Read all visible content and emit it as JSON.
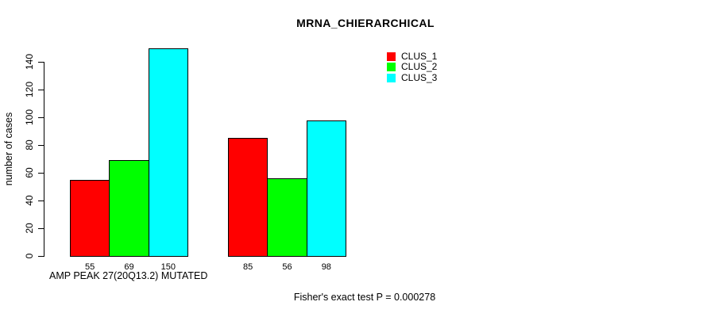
{
  "title": "MRNA_CHIERARCHICAL",
  "chart_data": {
    "type": "bar",
    "title": "MRNA_CHIERARCHICAL",
    "xlabel": "AMP PEAK 27(20Q13.2) MUTATED",
    "ylabel": "number of cases",
    "annotation": "Fisher's exact test P = 0.000278",
    "yticks": [
      0,
      20,
      40,
      60,
      80,
      100,
      120,
      140
    ],
    "ylim": [
      0,
      150
    ],
    "grid": false,
    "legend_position": "top-right",
    "series": [
      {
        "name": "CLUS_1",
        "color": "#ff0000",
        "values": [
          55,
          85
        ]
      },
      {
        "name": "CLUS_2",
        "color": "#00ff00",
        "values": [
          69,
          56
        ]
      },
      {
        "name": "CLUS_3",
        "color": "#00ffff",
        "values": [
          150,
          98
        ]
      }
    ]
  },
  "colors": {
    "axis": "#000000",
    "background": "#ffffff"
  }
}
